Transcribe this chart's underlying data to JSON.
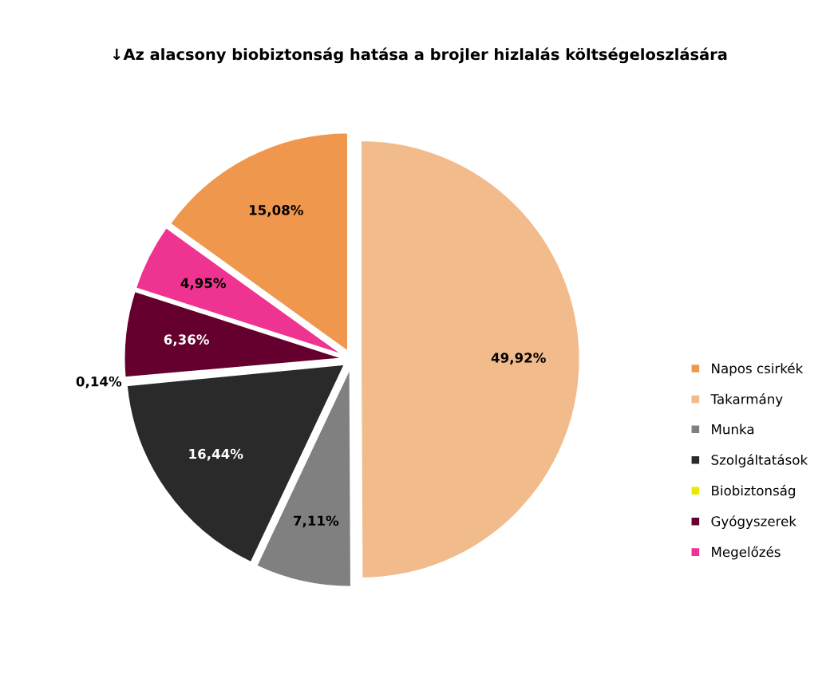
{
  "chart_data": {
    "type": "pie",
    "title": "↓Az alacsony biobiztonság hatása a brojler hizlalás költségeloszlására",
    "categories": [
      "Napos csirkék",
      "Takarmány",
      "Munka",
      "Szolgáltatások",
      "Biobiztonság",
      "Gyógyszerek",
      "Megelőzés"
    ],
    "values": [
      15.08,
      49.92,
      7.11,
      16.44,
      0.14,
      6.36,
      4.95
    ],
    "value_labels": [
      "15,08%",
      "49,92%",
      "7,11%",
      "16,44%",
      "0,14%",
      "6,36%",
      "4,95%"
    ],
    "colors": [
      "#f0974e",
      "#f2bb8c",
      "#808080",
      "#2a2a2a",
      "#e8e800",
      "#65002e",
      "#ef3391"
    ],
    "legend": "right"
  }
}
